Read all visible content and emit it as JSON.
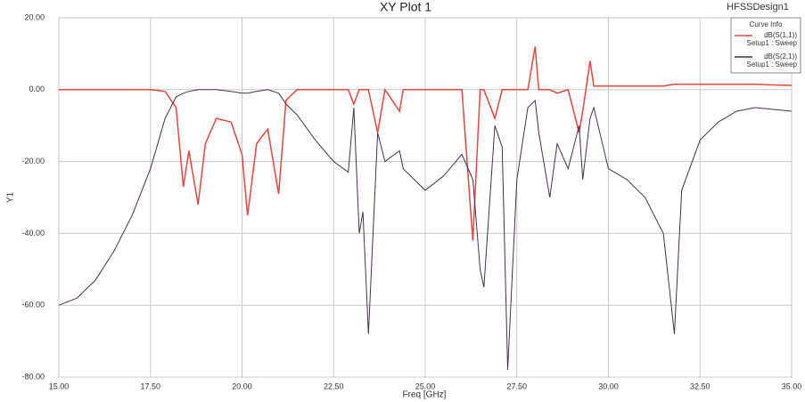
{
  "chart_data": {
    "type": "line",
    "title": "XY Plot 1",
    "design": "HFSSDesign1",
    "x_label": "Freq [GHz]",
    "y_label": "Y1",
    "legend_title": "Curve Info",
    "legend_position": "upper right",
    "grid": true,
    "x": [
      15.0,
      15.5,
      16.0,
      16.5,
      17.0,
      17.5,
      17.9,
      18.2,
      18.4,
      18.55,
      18.8,
      19.0,
      19.3,
      19.7,
      20.0,
      20.15,
      20.4,
      20.7,
      21.0,
      21.2,
      21.5,
      22.0,
      22.5,
      22.9,
      23.05,
      23.2,
      23.3,
      23.45,
      23.7,
      23.9,
      24.3,
      24.4,
      25.0,
      25.5,
      26.0,
      26.3,
      26.5,
      26.6,
      26.9,
      27.1,
      27.25,
      27.5,
      27.8,
      28.0,
      28.1,
      28.4,
      28.6,
      28.9,
      29.2,
      29.3,
      29.5,
      29.6,
      30.0,
      30.5,
      31.0,
      31.5,
      31.8,
      32.0,
      32.5,
      33.0,
      33.5,
      34.0,
      34.5,
      35.0
    ],
    "series": [
      {
        "name": "dB(S(1,1))",
        "setup": "Setup1 : Sweep",
        "color": "#e8453c",
        "values": [
          0,
          0,
          0,
          0,
          0,
          0,
          -0.5,
          -5,
          -27,
          -17,
          -32,
          -15,
          -8,
          -9,
          -18,
          -35,
          -15,
          -11,
          -29,
          -3,
          0,
          0,
          0,
          0,
          -4,
          0,
          0,
          0,
          -12,
          0,
          -6,
          0,
          0,
          0,
          0,
          -42,
          0,
          0,
          -8,
          0,
          0,
          0,
          0,
          12,
          0,
          0,
          -1,
          0,
          -12,
          -6,
          8,
          1,
          1,
          1,
          1,
          1,
          1.5,
          1.5,
          1.5,
          1.5,
          1.5,
          1.5,
          1.3,
          1.2
        ]
      },
      {
        "name": "dB(S(2,1))",
        "setup": "Setup1 : Sweep",
        "color": "#4a2f4f",
        "values": [
          -60,
          -58,
          -53,
          -45,
          -35,
          -22,
          -8,
          -2,
          -1,
          -0.5,
          0,
          0,
          0,
          -0.5,
          -1,
          -1,
          -0.5,
          0,
          -1,
          -4,
          -7,
          -14,
          -20,
          -23,
          -5,
          -40,
          -34,
          -68,
          -12,
          -20,
          -17,
          -22,
          -28,
          -24,
          -18,
          -25,
          -50,
          -55,
          -10,
          -16,
          -78,
          -25,
          -5,
          -3,
          -12,
          -30,
          -15,
          -22,
          -10,
          -25,
          -8,
          -5,
          -22,
          -25,
          -30,
          -40,
          -68,
          -28,
          -14,
          -9,
          -6,
          -5,
          -5.5,
          -6
        ]
      }
    ],
    "xlim": [
      15,
      35
    ],
    "xticks": [
      {
        "value": 15,
        "label": "15.00"
      },
      {
        "value": 17.5,
        "label": "17.50"
      },
      {
        "value": 20,
        "label": "20.00"
      },
      {
        "value": 22.5,
        "label": "22.50"
      },
      {
        "value": 25,
        "label": "25.00"
      },
      {
        "value": 27.5,
        "label": "27.50"
      },
      {
        "value": 30,
        "label": "30.00"
      },
      {
        "value": 32.5,
        "label": "32.50"
      },
      {
        "value": 35,
        "label": "35.00"
      }
    ],
    "ylim": [
      -80,
      20
    ],
    "yticks": [
      {
        "value": 20,
        "label": "20.00"
      },
      {
        "value": 0,
        "label": "0.00"
      },
      {
        "value": -20,
        "label": "-20.00"
      },
      {
        "value": -40,
        "label": "-40.00"
      },
      {
        "value": -60,
        "label": "-60.00"
      },
      {
        "value": -80,
        "label": "-80.00"
      }
    ]
  }
}
